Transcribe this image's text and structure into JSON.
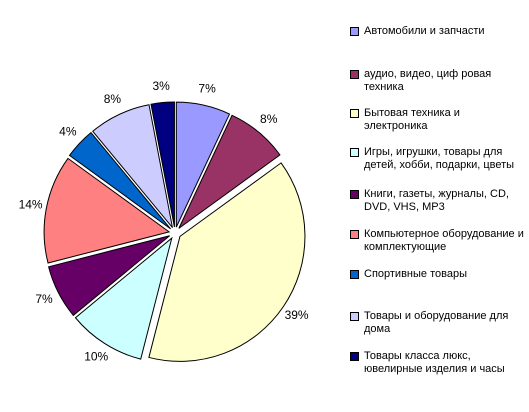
{
  "chart_data": {
    "type": "pie",
    "categories": [
      "Автомобили и запчасти",
      "аудио, видео, циф ровая техника",
      "Бытовая техника и электроника",
      "Игры, игрушки, товары для детей, хобби, подарки, цветы",
      "Книги, газеты, журналы, CD, DVD, VHS, MP3",
      "Компьютерное оборудование и комплектующие",
      "Спортивные товары",
      "Товары и оборудование для дома",
      "Товары класса люкс, ювелирные изделия и часы"
    ],
    "values": [
      7,
      8,
      39,
      10,
      7,
      14,
      4,
      8,
      3
    ],
    "value_labels": [
      "7%",
      "8%",
      "39%",
      "10%",
      "7%",
      "14%",
      "4%",
      "8%",
      "3%"
    ],
    "colors": [
      "#9999ff",
      "#993366",
      "#ffffcc",
      "#ccffff",
      "#660066",
      "#ff8080",
      "#0066cc",
      "#ccccff",
      "#000080"
    ]
  }
}
